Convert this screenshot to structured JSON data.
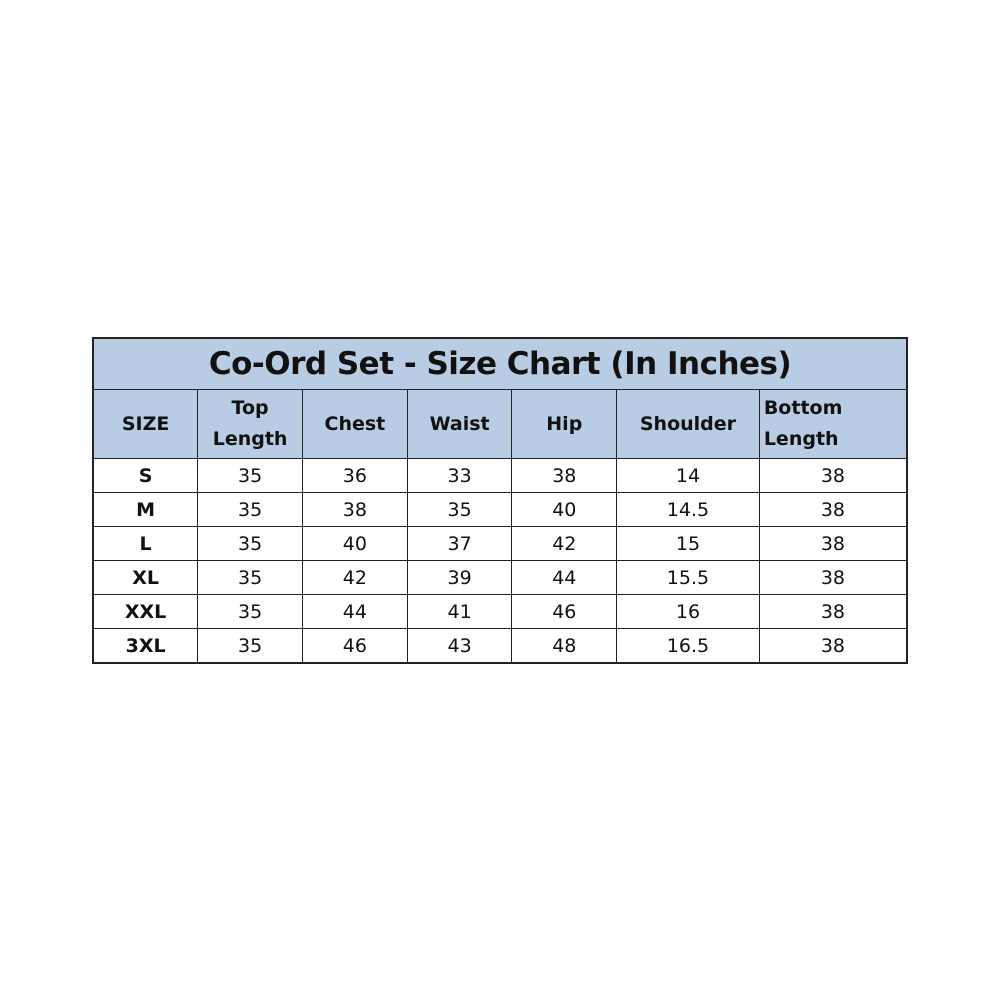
{
  "title": "Co-Ord Set - Size Chart (In Inches)",
  "headers": [
    "SIZE",
    "Top Length",
    "Chest",
    "Waist",
    "Hip",
    "Shoulder",
    "Bottom Length"
  ],
  "header_color": "#b8cce4",
  "rows": [
    [
      "S",
      "35",
      "36",
      "33",
      "38",
      "14",
      "38"
    ],
    [
      "M",
      "35",
      "38",
      "35",
      "40",
      "14.5",
      "38"
    ],
    [
      "L",
      "35",
      "40",
      "37",
      "42",
      "15",
      "38"
    ],
    [
      "XL",
      "35",
      "42",
      "39",
      "44",
      "15.5",
      "38"
    ],
    [
      "XXL",
      "35",
      "44",
      "41",
      "46",
      "16",
      "38"
    ],
    [
      "3XL",
      "35",
      "46",
      "43",
      "48",
      "16.5",
      "38"
    ]
  ]
}
